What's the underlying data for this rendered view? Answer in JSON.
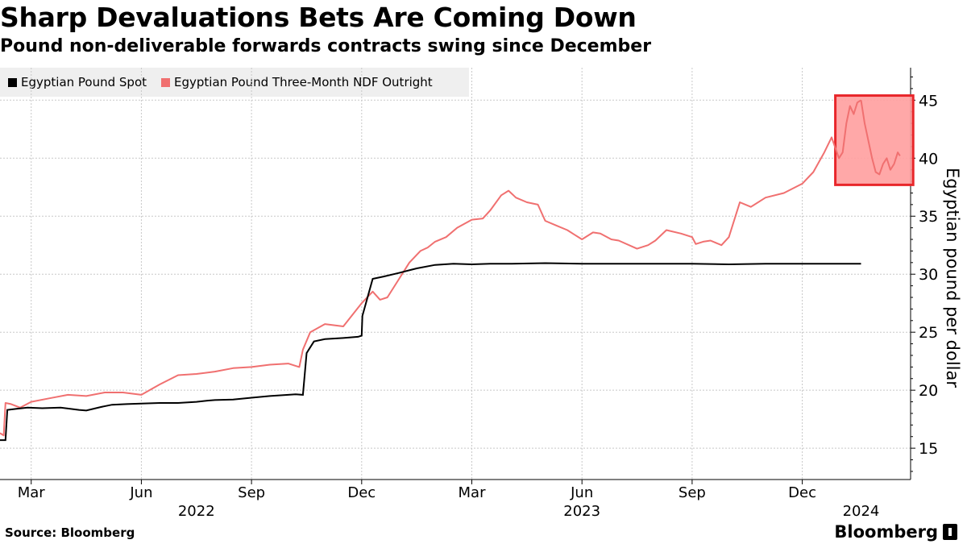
{
  "header": {
    "title": "Sharp Devaluations Bets Are Coming Down",
    "subtitle": "Pound non-deliverable forwards contracts swing since December"
  },
  "footer": {
    "source": "Source: Bloomberg",
    "brand": "Bloomberg"
  },
  "colors": {
    "spot": "#000000",
    "ndf": "#f07070",
    "highlight_fill": "#ff9f9f",
    "highlight_stroke": "#e8262a",
    "grid": "#c8c8c8"
  },
  "chart_data": {
    "type": "line",
    "title": "Sharp Devaluations Bets Are Coming Down",
    "subtitle": "Pound non-deliverable forwards contracts swing since December",
    "ylabel": "Egyptian pound per dollar",
    "xlabel": "",
    "ylim": [
      12.3,
      47.8
    ],
    "yticks": [
      15,
      20,
      25,
      30,
      35,
      40,
      45
    ],
    "xlim_months": [
      -0.85,
      23.95
    ],
    "xticks": [
      {
        "label": "Mar",
        "month": 0
      },
      {
        "label": "Jun",
        "month": 3
      },
      {
        "label": "Sep",
        "month": 6
      },
      {
        "label": "Dec",
        "month": 9
      },
      {
        "label": "Mar",
        "month": 12
      },
      {
        "label": "Jun",
        "month": 15
      },
      {
        "label": "Sep",
        "month": 18
      },
      {
        "label": "Dec",
        "month": 21
      }
    ],
    "year_labels": [
      {
        "label": "2022",
        "month": 4.5
      },
      {
        "label": "2023",
        "month": 15.0
      },
      {
        "label": "2024",
        "month": 22.6
      }
    ],
    "x_unit": "months since Mar 1, 2022",
    "grid": true,
    "legend_position": "top-left",
    "series": [
      {
        "name": "Egyptian Pound Spot",
        "x": [
          -0.85,
          -0.7,
          -0.65,
          -0.4,
          -0.1,
          0.3,
          0.8,
          1.3,
          1.5,
          1.9,
          2.2,
          2.6,
          3.0,
          3.5,
          4.0,
          4.5,
          4.8,
          5.0,
          5.5,
          6.0,
          6.5,
          7.0,
          7.2,
          7.4,
          7.5,
          7.7,
          8.0,
          8.5,
          8.9,
          9.0,
          9.02,
          9.3,
          9.6,
          10.0,
          10.5,
          11.0,
          11.5,
          12.0,
          12.5,
          13.0,
          14.0,
          15.0,
          16.0,
          17.0,
          18.0,
          19.0,
          20.0,
          21.0,
          22.0,
          22.6
        ],
        "values": [
          15.7,
          15.7,
          18.3,
          18.4,
          18.5,
          18.45,
          18.5,
          18.3,
          18.25,
          18.55,
          18.75,
          18.8,
          18.85,
          18.9,
          18.9,
          19.0,
          19.1,
          19.15,
          19.2,
          19.35,
          19.5,
          19.6,
          19.65,
          19.6,
          23.2,
          24.2,
          24.4,
          24.5,
          24.6,
          24.7,
          26.4,
          29.6,
          29.8,
          30.1,
          30.5,
          30.8,
          30.9,
          30.85,
          30.9,
          30.9,
          30.95,
          30.9,
          30.9,
          30.9,
          30.9,
          30.85,
          30.9,
          30.9,
          30.9,
          30.9
        ]
      },
      {
        "name": "Egyptian Pound Three-Month NDF Outright",
        "x": [
          -0.85,
          -0.75,
          -0.7,
          -0.55,
          -0.3,
          0.0,
          0.5,
          1.0,
          1.5,
          2.0,
          2.5,
          3.0,
          3.5,
          4.0,
          4.5,
          5.0,
          5.5,
          6.0,
          6.5,
          7.0,
          7.3,
          7.4,
          7.6,
          8.0,
          8.5,
          9.0,
          9.3,
          9.5,
          9.7,
          10.0,
          10.3,
          10.6,
          10.8,
          11.0,
          11.3,
          11.6,
          12.0,
          12.3,
          12.5,
          12.8,
          13.0,
          13.2,
          13.5,
          13.8,
          14.0,
          14.3,
          14.6,
          14.8,
          15.0,
          15.3,
          15.5,
          15.8,
          16.0,
          16.5,
          16.8,
          17.0,
          17.3,
          17.7,
          18.0,
          18.1,
          18.3,
          18.5,
          18.8,
          19.0,
          19.3,
          19.6,
          20.0,
          20.5,
          21.0,
          21.3,
          21.6,
          21.8,
          22.0,
          22.1,
          22.2,
          22.3,
          22.4,
          22.5,
          22.6
        ],
        "values": [
          16.3,
          16.1,
          18.9,
          18.8,
          18.5,
          19.0,
          19.3,
          19.6,
          19.5,
          19.8,
          19.8,
          19.6,
          20.5,
          21.3,
          21.4,
          21.6,
          21.9,
          22.0,
          22.2,
          22.3,
          22.0,
          23.5,
          25.0,
          25.7,
          25.5,
          27.5,
          28.5,
          27.8,
          28.0,
          29.5,
          31.0,
          32.0,
          32.3,
          32.8,
          33.2,
          34.0,
          34.7,
          34.8,
          35.5,
          36.8,
          37.2,
          36.6,
          36.2,
          36.0,
          34.6,
          34.2,
          33.8,
          33.4,
          33.0,
          33.6,
          33.5,
          33.0,
          32.9,
          32.2,
          32.5,
          32.9,
          33.8,
          33.5,
          33.2,
          32.6,
          32.8,
          32.9,
          32.5,
          33.2,
          36.2,
          35.8,
          36.6,
          37.0,
          37.8,
          38.8,
          40.5,
          41.8,
          40.0,
          40.5,
          43.0,
          44.5,
          43.8,
          44.8,
          45.0
        ]
      }
    ],
    "ndf_tail": {
      "x": [
        22.6,
        22.7,
        22.8,
        22.9,
        23.0,
        23.1,
        23.2,
        23.3,
        23.4,
        23.5,
        23.6,
        23.66
      ],
      "values": [
        45.0,
        43.0,
        41.5,
        40.0,
        38.8,
        38.6,
        39.5,
        40.0,
        39.0,
        39.5,
        40.5,
        40.2
      ]
    },
    "highlight_box": {
      "x0": 21.9,
      "x1": 24.02,
      "y0": 37.7,
      "y1": 45.4
    }
  }
}
